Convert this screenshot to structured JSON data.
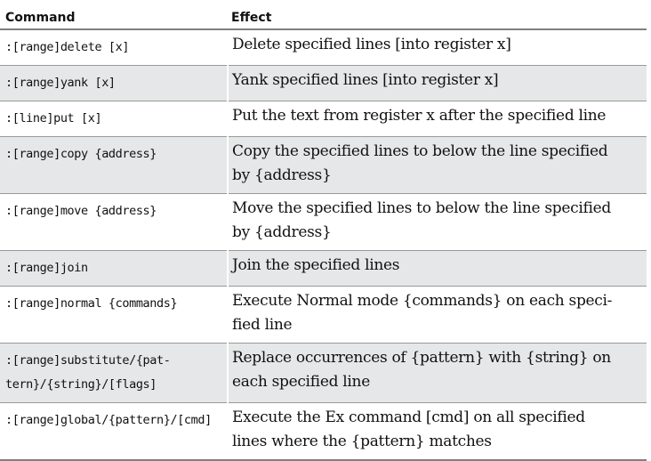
{
  "header": {
    "command": "Command",
    "effect": "Effect"
  },
  "rows": [
    {
      "command": [
        ":[range]delete [x]"
      ],
      "effect": [
        "Delete specified lines [into register x]"
      ]
    },
    {
      "command": [
        ":[range]yank [x]"
      ],
      "effect": [
        "Yank specified lines [into register x]"
      ]
    },
    {
      "command": [
        ":[line]put [x]"
      ],
      "effect": [
        "Put the text from register x after the specified line"
      ]
    },
    {
      "command": [
        ":[range]copy {address}"
      ],
      "effect": [
        "Copy the specified lines to below the line specified",
        "by {address}"
      ]
    },
    {
      "command": [
        ":[range]move {address}"
      ],
      "effect": [
        "Move the specified lines to below the line specified",
        "by {address}"
      ]
    },
    {
      "command": [
        ":[range]join"
      ],
      "effect": [
        "Join the specified lines"
      ]
    },
    {
      "command": [
        ":[range]normal {commands}"
      ],
      "effect": [
        "Execute Normal mode {commands} on each speci-",
        "fied line"
      ]
    },
    {
      "command": [
        ":[range]substitute/{pat-",
        "tern}/{string}/[flags]"
      ],
      "effect": [
        "Replace occurrences of {pattern} with {string} on",
        "each specified line"
      ]
    },
    {
      "command": [
        ":[range]global/{pattern}/[cmd]"
      ],
      "effect": [
        "Execute the Ex command [cmd] on all specified",
        "lines where the {pattern} matches"
      ]
    }
  ]
}
